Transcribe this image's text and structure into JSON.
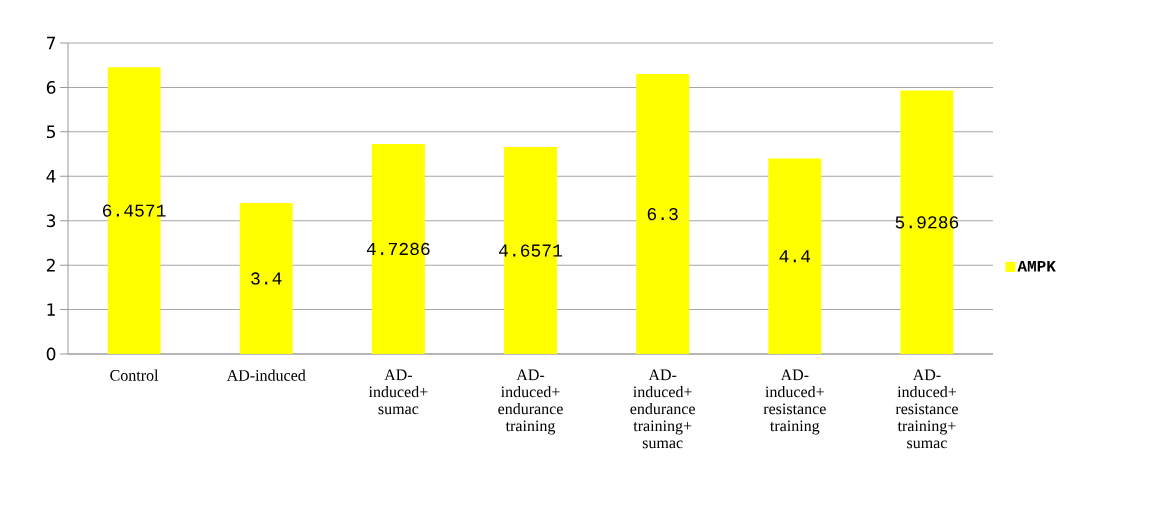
{
  "chart_data": {
    "type": "bar",
    "categories": [
      "Control",
      "AD-induced",
      "AD-induced+ sumac",
      "AD-induced+ endurance training",
      "AD-induced+ endurance training+ sumac",
      "AD-induced+ resistance training",
      "AD-induced+ resistance training+ sumac"
    ],
    "series": [
      {
        "name": "AMPK",
        "color": "#ffff00",
        "values": [
          6.4571,
          3.4,
          4.7286,
          4.6571,
          6.3,
          4.4,
          5.9286
        ]
      }
    ],
    "ylim": [
      0,
      7
    ],
    "yticks": [
      0,
      1,
      2,
      3,
      4,
      5,
      6,
      7
    ],
    "grid": "y",
    "legend": "right",
    "data_labels": true
  }
}
